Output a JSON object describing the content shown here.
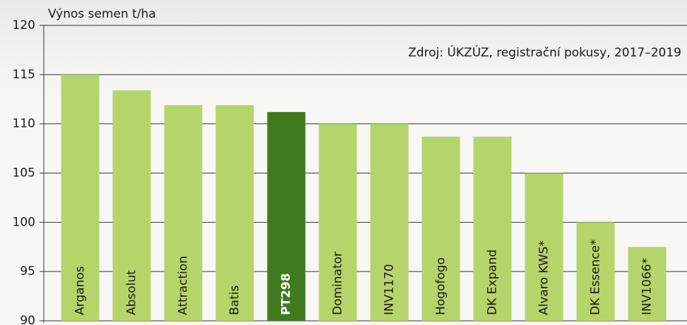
{
  "chart_data": {
    "type": "bar",
    "y_axis_label": "Výnos semen t/ha",
    "annotation": "Zdroj: ÚKZÚZ, registrační pokusy, 2017–2019",
    "categories": [
      "Arganos",
      "Absolut",
      "Attraction",
      "Batis",
      "PT298",
      "Dominator",
      "INV1170",
      "Hogofogo",
      "DK Expand",
      "Alvaro KWS*",
      "DK Essence*",
      "INV1066*"
    ],
    "values": [
      115,
      113.4,
      111.9,
      111.9,
      111.2,
      110,
      110,
      108.7,
      108.7,
      105,
      100,
      97.5
    ],
    "colors": [
      "#b5d56a",
      "#b5d56a",
      "#b5d56a",
      "#b5d56a",
      "#3f7a1f",
      "#b5d56a",
      "#b5d56a",
      "#b5d56a",
      "#b5d56a",
      "#b5d56a",
      "#b5d56a",
      "#b5d56a"
    ],
    "ylim": [
      90,
      120
    ],
    "yticks": [
      90,
      95,
      100,
      105,
      110,
      115,
      120
    ],
    "grid": true
  }
}
